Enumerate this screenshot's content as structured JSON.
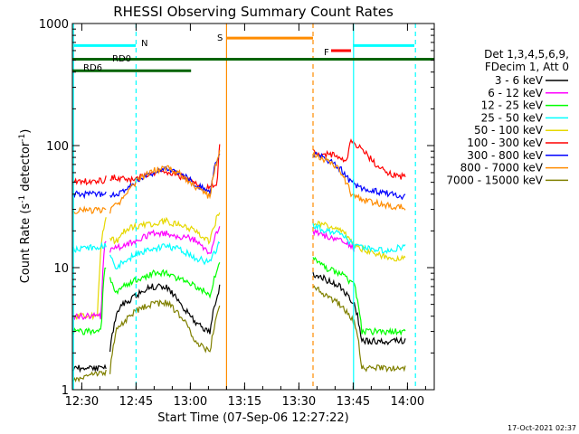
{
  "chart_data": {
    "type": "line",
    "title": "RHESSI Observing Summary Count Rates",
    "xlabel": "Start Time (07-Sep-06 12:27:22)",
    "ylabel_main": "Count Rate (s",
    "ylabel_sup1": "-1",
    "ylabel_mid": " detector",
    "ylabel_sup2": "-1",
    "ylabel_end": ")",
    "x_unit": "minutes since 12:27:22",
    "xlim": [
      0,
      100
    ],
    "ylim": [
      1,
      1000
    ],
    "yscale": "log",
    "x_ticks": [
      {
        "label": "12:30",
        "x": 2.6
      },
      {
        "label": "12:45",
        "x": 17.6
      },
      {
        "label": "13:00",
        "x": 32.6
      },
      {
        "label": "13:15",
        "x": 47.6
      },
      {
        "label": "13:30",
        "x": 62.6
      },
      {
        "label": "13:45",
        "x": 77.6
      },
      {
        "label": "14:00",
        "x": 92.6
      }
    ],
    "y_ticks": [
      {
        "label": "1",
        "y": 1
      },
      {
        "label": "10",
        "y": 10
      },
      {
        "label": "100",
        "y": 100
      },
      {
        "label": "1000",
        "y": 1000
      }
    ],
    "legend_header_1": "Det 1,3,4,5,6,9,",
    "legend_header_2": "FDecim 1, Att 0",
    "legend": [
      {
        "name": "3 - 6 keV",
        "color": "#000000"
      },
      {
        "name": "6 - 12 keV",
        "color": "#ff00ff"
      },
      {
        "name": "12 - 25 keV",
        "color": "#00ff00"
      },
      {
        "name": "25 - 50 keV",
        "color": "#00ffff"
      },
      {
        "name": "50 - 100 keV",
        "color": "#e6d800"
      },
      {
        "name": "100 - 300 keV",
        "color": "#ff0000"
      },
      {
        "name": "300 - 800 keV",
        "color": "#0000ff"
      },
      {
        "name": "800 - 7000 keV",
        "color": "#ff8c00"
      },
      {
        "name": "7000 - 15000 keV",
        "color": "#808000"
      }
    ],
    "segments": [
      {
        "start": 0,
        "end": 9.4
      },
      {
        "start": 10.4,
        "end": 40.8
      },
      {
        "start": 66.5,
        "end": 92
      }
    ],
    "series": [
      {
        "color": "#ff0000",
        "values": [
          [
            0,
            50
          ],
          [
            9,
            52
          ],
          [
            9.4,
            55
          ],
          [
            10.4,
            55
          ],
          [
            14,
            54
          ],
          [
            17,
            52
          ],
          [
            20,
            57
          ],
          [
            24,
            62
          ],
          [
            28,
            60
          ],
          [
            32,
            52
          ],
          [
            36,
            45
          ],
          [
            40,
            48
          ],
          [
            40.8,
            110
          ],
          [
            66.5,
            90
          ],
          [
            70,
            85
          ],
          [
            74,
            82
          ],
          [
            76,
            72
          ],
          [
            76.8,
            110
          ],
          [
            80,
            92
          ],
          [
            84,
            70
          ],
          [
            88,
            58
          ],
          [
            92,
            55
          ]
        ]
      },
      {
        "color": "#0000ff",
        "values": [
          [
            0,
            40
          ],
          [
            9.4,
            40
          ],
          [
            10.4,
            38
          ],
          [
            14,
            42
          ],
          [
            18,
            52
          ],
          [
            22,
            58
          ],
          [
            26,
            64
          ],
          [
            30,
            60
          ],
          [
            34,
            48
          ],
          [
            38,
            42
          ],
          [
            40.8,
            92
          ],
          [
            66.5,
            85
          ],
          [
            70,
            78
          ],
          [
            74,
            65
          ],
          [
            77,
            50
          ],
          [
            80,
            45
          ],
          [
            84,
            42
          ],
          [
            88,
            40
          ],
          [
            92,
            38
          ]
        ]
      },
      {
        "color": "#ff8c00",
        "values": [
          [
            0,
            29
          ],
          [
            9.4,
            30
          ],
          [
            10.4,
            29
          ],
          [
            14,
            36
          ],
          [
            18,
            52
          ],
          [
            22,
            62
          ],
          [
            26,
            66
          ],
          [
            30,
            58
          ],
          [
            34,
            46
          ],
          [
            38,
            38
          ],
          [
            40.8,
            90
          ],
          [
            66.5,
            85
          ],
          [
            70,
            76
          ],
          [
            74,
            62
          ],
          [
            77,
            40
          ],
          [
            80,
            36
          ],
          [
            84,
            34
          ],
          [
            88,
            32
          ],
          [
            92,
            31
          ]
        ]
      },
      {
        "color": "#e6d800",
        "values": [
          [
            0,
            4
          ],
          [
            7,
            4
          ],
          [
            8,
            15
          ],
          [
            9,
            25
          ],
          [
            9.4,
            28
          ],
          [
            10.4,
            18
          ],
          [
            12,
            16
          ],
          [
            14,
            20
          ],
          [
            18,
            22
          ],
          [
            22,
            23
          ],
          [
            26,
            24
          ],
          [
            30,
            22
          ],
          [
            34,
            20
          ],
          [
            38,
            16
          ],
          [
            40.8,
            30
          ],
          [
            66.5,
            24
          ],
          [
            70,
            22
          ],
          [
            74,
            20
          ],
          [
            76,
            18
          ],
          [
            78,
            15
          ],
          [
            84,
            13
          ],
          [
            88,
            12
          ],
          [
            92,
            12
          ]
        ]
      },
      {
        "color": "#ff00ff",
        "values": [
          [
            0,
            4
          ],
          [
            8,
            4
          ],
          [
            9,
            16
          ],
          [
            10.4,
            14
          ],
          [
            14,
            15
          ],
          [
            18,
            17
          ],
          [
            22,
            19
          ],
          [
            26,
            19
          ],
          [
            30,
            18
          ],
          [
            34,
            17
          ],
          [
            38,
            13
          ],
          [
            40.8,
            22
          ],
          [
            66.5,
            20
          ],
          [
            70,
            18
          ],
          [
            74,
            17
          ],
          [
            76,
            16
          ],
          [
            78,
            14
          ]
        ]
      },
      {
        "color": "#00ffff",
        "values": [
          [
            0,
            14
          ],
          [
            9.4,
            15
          ],
          [
            10.4,
            13
          ],
          [
            12,
            10
          ],
          [
            14,
            11
          ],
          [
            18,
            13
          ],
          [
            22,
            14
          ],
          [
            26,
            15
          ],
          [
            30,
            14
          ],
          [
            34,
            12
          ],
          [
            38,
            11
          ],
          [
            40.8,
            16
          ],
          [
            66.5,
            22
          ],
          [
            70,
            20
          ],
          [
            74,
            19
          ],
          [
            78,
            15
          ],
          [
            84,
            14
          ],
          [
            88,
            14
          ],
          [
            92,
            15
          ]
        ]
      },
      {
        "color": "#00ff00",
        "values": [
          [
            0,
            3
          ],
          [
            8,
            3
          ],
          [
            9,
            10
          ],
          [
            10.4,
            8
          ],
          [
            12,
            6
          ],
          [
            14,
            7
          ],
          [
            18,
            8
          ],
          [
            22,
            9
          ],
          [
            26,
            9
          ],
          [
            30,
            8
          ],
          [
            34,
            7
          ],
          [
            38,
            6
          ],
          [
            40.8,
            11
          ],
          [
            66.5,
            12
          ],
          [
            70,
            10
          ],
          [
            74,
            9
          ],
          [
            78,
            7
          ],
          [
            80,
            3
          ],
          [
            92,
            3
          ]
        ]
      },
      {
        "color": "#000000",
        "values": [
          [
            0,
            1.5
          ],
          [
            9.4,
            1.5
          ],
          [
            10.4,
            2
          ],
          [
            12,
            4
          ],
          [
            14,
            5
          ],
          [
            18,
            6
          ],
          [
            22,
            7
          ],
          [
            26,
            7
          ],
          [
            30,
            5
          ],
          [
            34,
            3.5
          ],
          [
            38,
            3
          ],
          [
            40.8,
            7
          ],
          [
            66.5,
            9
          ],
          [
            70,
            8
          ],
          [
            74,
            7
          ],
          [
            78,
            5
          ],
          [
            80,
            2.5
          ],
          [
            92,
            2.5
          ]
        ]
      },
      {
        "color": "#808000",
        "values": [
          [
            0,
            1.2
          ],
          [
            9.4,
            1.4
          ],
          [
            10.4,
            1.4
          ],
          [
            12,
            3
          ],
          [
            14,
            3.5
          ],
          [
            18,
            4.5
          ],
          [
            22,
            5
          ],
          [
            26,
            5.2
          ],
          [
            30,
            4
          ],
          [
            34,
            2.5
          ],
          [
            38,
            2
          ],
          [
            40.8,
            5
          ],
          [
            66.5,
            7
          ],
          [
            70,
            6
          ],
          [
            74,
            5
          ],
          [
            78,
            3.5
          ],
          [
            80,
            1.5
          ],
          [
            92,
            1.5
          ]
        ]
      }
    ],
    "annotations": {
      "flag_n": {
        "label": "N",
        "color": "#00ffff",
        "x_start": 0.5,
        "x_end": 17.5,
        "y": 660
      },
      "flag_rd0": {
        "label": "RD0",
        "color": "#006400",
        "x_start": 0,
        "x_end": 100,
        "y": 510
      },
      "flag_rd6": {
        "label": "RD6",
        "color": "#006400",
        "x_start": 0,
        "x_end": 32.8,
        "y": 410
      },
      "flag_s": {
        "label": "S",
        "color": "#ff8c00",
        "x_start": 42.5,
        "x_end": 66.5,
        "y": 760
      },
      "flag_f": {
        "label": "F",
        "color": "#ff0000",
        "x_start": 71.5,
        "x_end": 77,
        "y": 600
      },
      "flag_n2": {
        "label": "",
        "color": "#00ffff",
        "x_start": 77.5,
        "x_end": 94.5,
        "y": 660
      },
      "vlines": [
        {
          "x": 0.3,
          "color": "#00ffff",
          "style": "solid"
        },
        {
          "x": 17.6,
          "color": "#00ffff",
          "style": "dashed"
        },
        {
          "x": 42.6,
          "color": "#ff8c00",
          "style": "solid"
        },
        {
          "x": 66.5,
          "color": "#ff8c00",
          "style": "dashed"
        },
        {
          "x": 77.7,
          "color": "#00ffff",
          "style": "solid"
        },
        {
          "x": 94.8,
          "color": "#00ffff",
          "style": "dashed"
        }
      ]
    },
    "timestamp": "17-Oct-2021 02:37"
  }
}
